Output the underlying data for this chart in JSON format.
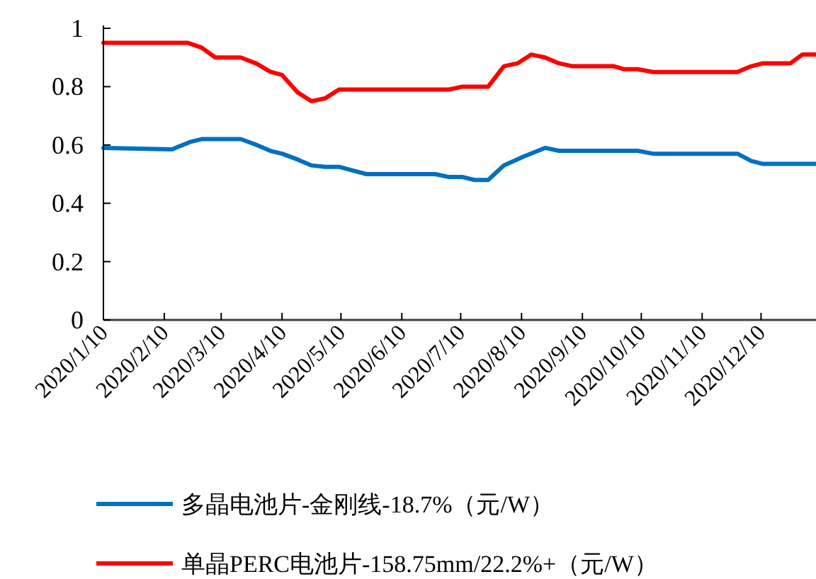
{
  "chart_data": {
    "type": "line",
    "xlim": [
      "2020-01-10",
      "2021-01-07"
    ],
    "ylim": [
      0,
      1
    ],
    "yticks": [
      0,
      0.2,
      0.4,
      0.6,
      0.8,
      1
    ],
    "xticks": [
      {
        "value": "2020-01-10",
        "label": "2020/1/10"
      },
      {
        "value": "2020-02-10",
        "label": "2020/2/10"
      },
      {
        "value": "2020-03-10",
        "label": "2020/3/10"
      },
      {
        "value": "2020-04-10",
        "label": "2020/4/10"
      },
      {
        "value": "2020-05-10",
        "label": "2020/5/10"
      },
      {
        "value": "2020-06-10",
        "label": "2020/6/10"
      },
      {
        "value": "2020-07-10",
        "label": "2020/7/10"
      },
      {
        "value": "2020-08-10",
        "label": "2020/8/10"
      },
      {
        "value": "2020-09-10",
        "label": "2020/9/10"
      },
      {
        "value": "2020-10-10",
        "label": "2020/10/10"
      },
      {
        "value": "2020-11-10",
        "label": "2020/11/10"
      },
      {
        "value": "2020-12-10",
        "label": "2020/12/10"
      }
    ],
    "grid": false,
    "legend": "bottom",
    "line_style": "solid",
    "series": [
      {
        "name": "多晶电池片-金刚线-18.7%（元/W）",
        "color": "#0070c0",
        "x": [
          "2020-01-10",
          "2020-02-14",
          "2020-02-23",
          "2020-02-29",
          "2020-03-20",
          "2020-03-28",
          "2020-04-04",
          "2020-04-10",
          "2020-04-18",
          "2020-04-25",
          "2020-05-02",
          "2020-05-09",
          "2020-05-23",
          "2020-06-27",
          "2020-07-04",
          "2020-07-11",
          "2020-07-17",
          "2020-07-24",
          "2020-08-01",
          "2020-08-11",
          "2020-08-22",
          "2020-08-29",
          "2020-10-08",
          "2020-10-16",
          "2020-11-28",
          "2020-12-05",
          "2020-12-11",
          "2021-01-07"
        ],
        "values": [
          0.59,
          0.585,
          0.61,
          0.62,
          0.62,
          0.6,
          0.58,
          0.57,
          0.55,
          0.53,
          0.525,
          0.525,
          0.5,
          0.5,
          0.49,
          0.49,
          0.48,
          0.48,
          0.53,
          0.56,
          0.59,
          0.58,
          0.58,
          0.57,
          0.57,
          0.545,
          0.535,
          0.535
        ]
      },
      {
        "name": "单晶PERC电池片-158.75mm/22.2%+（元/W）",
        "color": "#ff0000",
        "x": [
          "2020-01-10",
          "2020-02-22",
          "2020-02-29",
          "2020-03-07",
          "2020-03-20",
          "2020-03-28",
          "2020-04-04",
          "2020-04-10",
          "2020-04-18",
          "2020-04-25",
          "2020-05-02",
          "2020-05-09",
          "2020-07-04",
          "2020-07-11",
          "2020-07-24",
          "2020-08-01",
          "2020-08-08",
          "2020-08-15",
          "2020-08-22",
          "2020-08-29",
          "2020-09-05",
          "2020-09-26",
          "2020-10-01",
          "2020-10-08",
          "2020-10-16",
          "2020-11-28",
          "2020-12-05",
          "2020-12-11",
          "2020-12-25",
          "2020-12-31",
          "2021-01-07"
        ],
        "values": [
          0.95,
          0.95,
          0.934,
          0.9,
          0.9,
          0.879,
          0.851,
          0.84,
          0.78,
          0.75,
          0.76,
          0.79,
          0.79,
          0.8,
          0.8,
          0.87,
          0.88,
          0.91,
          0.9,
          0.88,
          0.87,
          0.87,
          0.86,
          0.86,
          0.85,
          0.85,
          0.87,
          0.88,
          0.88,
          0.91,
          0.91
        ]
      }
    ]
  }
}
